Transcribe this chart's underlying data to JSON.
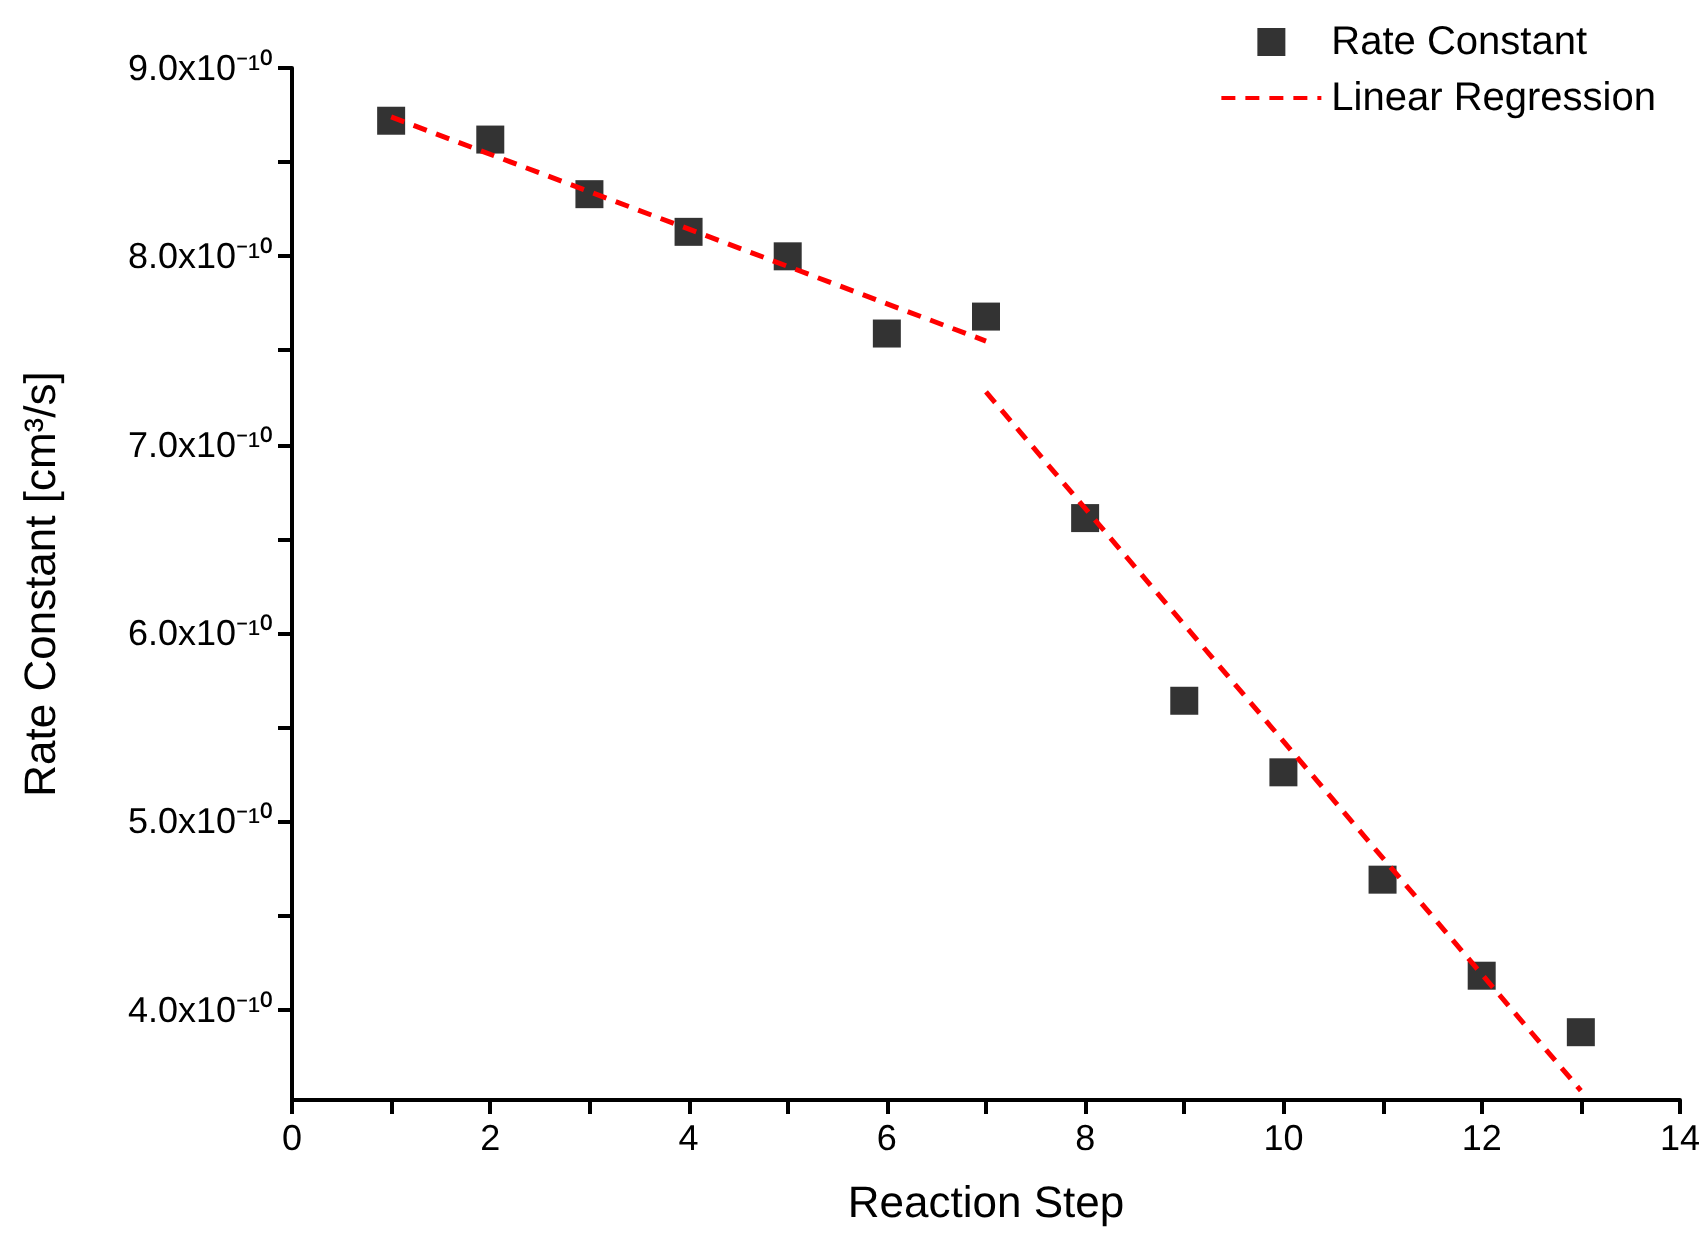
{
  "chart_data": {
    "type": "scatter",
    "xlabel": "Reaction Step",
    "ylabel": "Rate Constant [cm³/s]",
    "xlim": [
      0,
      14
    ],
    "xticks": [
      0,
      {
        "value": 1,
        "label": null
      },
      2,
      {
        "value": 3,
        "label": null
      },
      4,
      {
        "value": 5,
        "label": null
      },
      6,
      {
        "value": 7,
        "label": null
      },
      8,
      {
        "value": 9,
        "label": null
      },
      10,
      {
        "value": 11,
        "label": null
      },
      12,
      {
        "value": 13,
        "label": null
      },
      14
    ],
    "ylim": [
      3.52e-10,
      9e-10
    ],
    "yticks": [
      {
        "value": 4e-10,
        "label": "4.0x10⁻¹⁰"
      },
      {
        "value": 4.5e-10,
        "label": null
      },
      {
        "value": 5e-10,
        "label": "5.0x10⁻¹⁰"
      },
      {
        "value": 5.5e-10,
        "label": null
      },
      {
        "value": 6e-10,
        "label": "6.0x10⁻¹⁰"
      },
      {
        "value": 6.5e-10,
        "label": null
      },
      {
        "value": 7e-10,
        "label": "7.0x10⁻¹⁰"
      },
      {
        "value": 7.5e-10,
        "label": null
      },
      {
        "value": 8e-10,
        "label": "8.0x10⁻¹⁰"
      },
      {
        "value": 8.5e-10,
        "label": null
      },
      {
        "value": 9e-10,
        "label": "9.0x10⁻¹⁰"
      }
    ],
    "grid": false,
    "legend": "top right",
    "series": [
      {
        "name": "Rate Constant",
        "marker": "square",
        "color": "#000000",
        "x": [
          1,
          2,
          3,
          4,
          5,
          6,
          7,
          8,
          9,
          10,
          11,
          12,
          13
        ],
        "values": [
          8.72e-10,
          8.62e-10,
          8.33e-10,
          8.13e-10,
          8e-10,
          7.59e-10,
          7.68e-10,
          6.61e-10,
          5.64e-10,
          5.26e-10,
          4.69e-10,
          4.18e-10,
          3.88e-10
        ]
      },
      {
        "name": "Linear Regression",
        "type": "line",
        "line_style": "dashed",
        "marker": "none",
        "color": "#ff0000",
        "x": [
          1,
          7
        ],
        "values": [
          8.74e-10,
          7.55e-10
        ]
      },
      {
        "type": "line",
        "line_style": "dashed",
        "marker": "none",
        "color": "#ff0000",
        "x": [
          7,
          13
        ],
        "values": [
          7.28e-10,
          3.57e-10
        ]
      }
    ]
  }
}
